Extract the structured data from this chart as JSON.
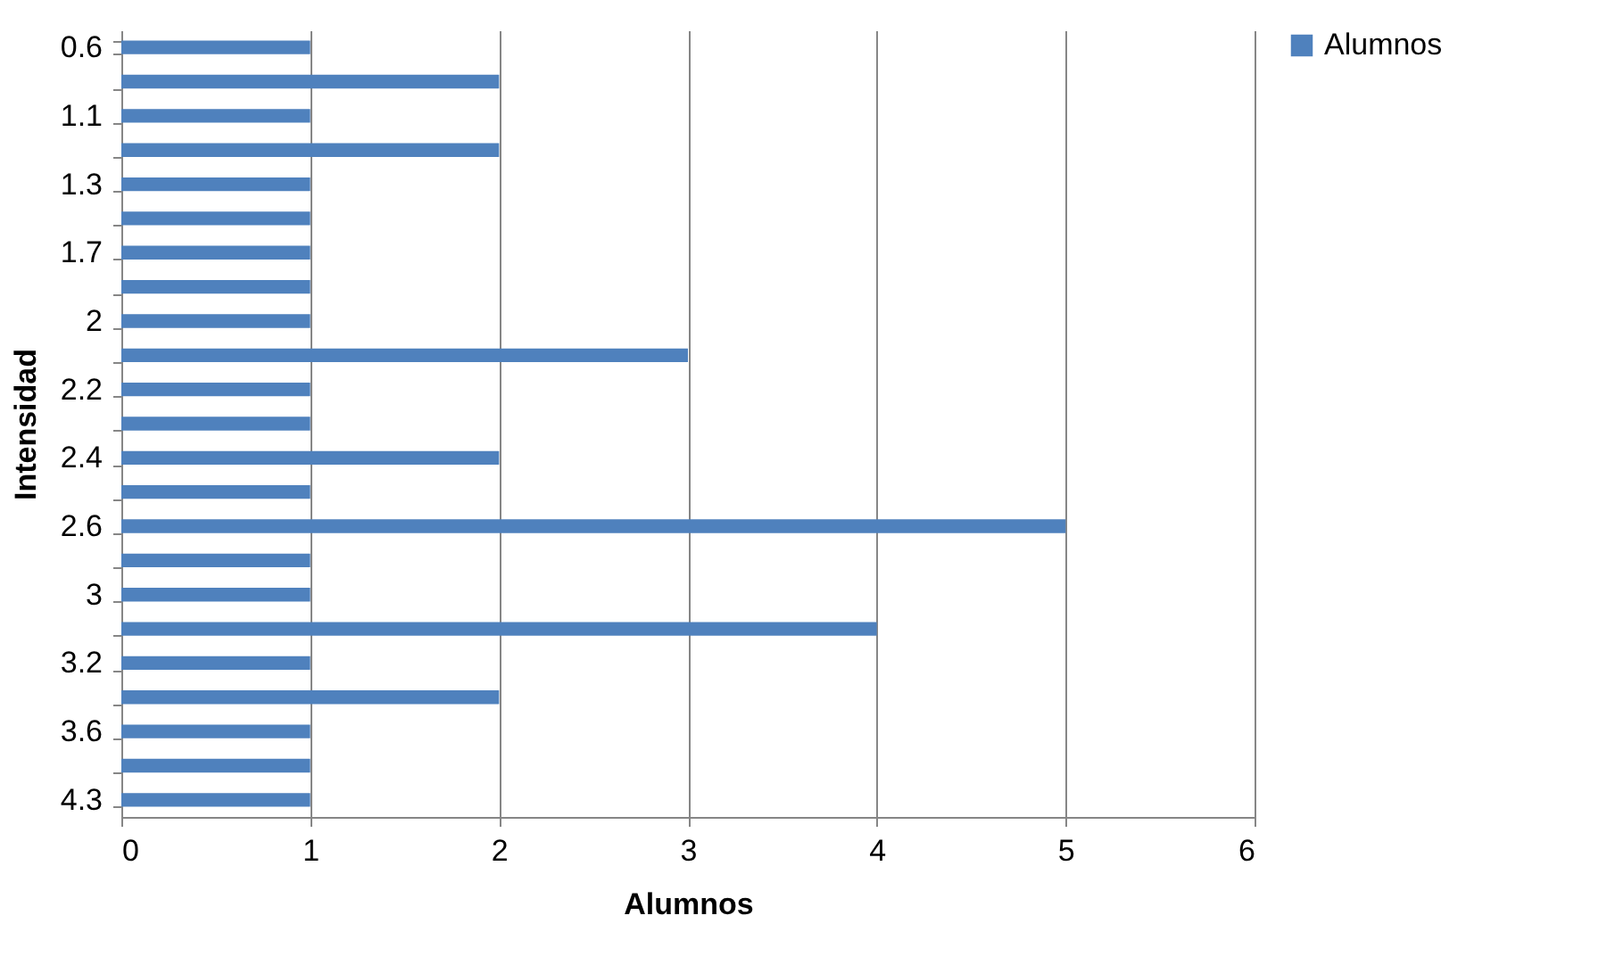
{
  "chart_data": {
    "type": "bar",
    "orientation": "horizontal",
    "xlabel": "Alumnos",
    "ylabel": "Intensidad",
    "categories": [
      "0.6",
      null,
      "1.1",
      null,
      "1.3",
      null,
      "1.7",
      null,
      "2",
      null,
      "2.2",
      null,
      "2.4",
      null,
      "2.6",
      null,
      "3",
      null,
      "3.2",
      null,
      "3.6",
      null,
      "4.3"
    ],
    "series": [
      {
        "name": "Alumnos",
        "color": "#4f81bd",
        "values": [
          1,
          2,
          1,
          2,
          1,
          1,
          1,
          1,
          1,
          3,
          1,
          1,
          2,
          1,
          5,
          1,
          1,
          4,
          1,
          2,
          1,
          1,
          1
        ]
      }
    ],
    "xlim": [
      0,
      6
    ],
    "xticks": [
      0,
      1,
      2,
      3,
      4,
      5,
      6
    ],
    "grid": "x",
    "legend": "right"
  }
}
